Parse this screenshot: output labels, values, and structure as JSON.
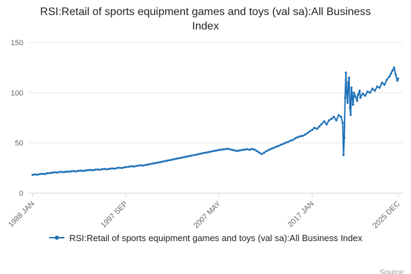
{
  "title": "RSI:Retail of sports equipment games and toys (val sa):All Business Index",
  "legend": {
    "label": "RSI:Retail of sports equipment games and toys (val sa):All Business Index"
  },
  "source_label": "Source:",
  "colors": {
    "line": "#1d70b8",
    "axis": "#ccd1d9",
    "gridline": "#e6e6e6",
    "tick_text": "#666666",
    "title_text": "#222222"
  },
  "chart_data": {
    "type": "line",
    "title": "RSI:Retail of sports equipment games and toys (val sa):All Business Index",
    "xlabel": "",
    "ylabel": "",
    "legend_position": "bottom",
    "grid": "horizontal-faint",
    "ylim": [
      0,
      150
    ],
    "xlim": [
      1987.6,
      2026.4
    ],
    "y_ticks": [
      0,
      50,
      100,
      150
    ],
    "x_ticks": [
      {
        "x": 1988.0,
        "label": "1988 JAN"
      },
      {
        "x": 1997.667,
        "label": "1997 SEP"
      },
      {
        "x": 2007.333,
        "label": "2007 MAY"
      },
      {
        "x": 2017.0,
        "label": "2017 JAN"
      },
      {
        "x": 2025.917,
        "label": "2025 DEC"
      }
    ],
    "series": [
      {
        "name": "RSI:Retail of sports equipment games and toys (val sa):All Business Index",
        "points": [
          [
            1988,
            18.2
          ],
          [
            1988.25,
            18.6
          ],
          [
            1988.5,
            18.4
          ],
          [
            1988.75,
            19
          ],
          [
            1989,
            19.3
          ],
          [
            1989.25,
            19.1
          ],
          [
            1989.5,
            19.8
          ],
          [
            1989.75,
            20
          ],
          [
            1990,
            20.3
          ],
          [
            1990.25,
            20.8
          ],
          [
            1990.5,
            20.5
          ],
          [
            1990.75,
            21
          ],
          [
            1991,
            21.2
          ],
          [
            1991.25,
            20.9
          ],
          [
            1991.5,
            21.5
          ],
          [
            1991.75,
            21.3
          ],
          [
            1992,
            21.8
          ],
          [
            1992.25,
            22
          ],
          [
            1992.5,
            21.6
          ],
          [
            1992.75,
            22.2
          ],
          [
            1993,
            22.4
          ],
          [
            1993.25,
            22.1
          ],
          [
            1993.5,
            22.6
          ],
          [
            1993.75,
            22.9
          ],
          [
            1994,
            23.1
          ],
          [
            1994.25,
            22.8
          ],
          [
            1994.5,
            23.4
          ],
          [
            1994.75,
            23.6
          ],
          [
            1995,
            23.3
          ],
          [
            1995.25,
            23.9
          ],
          [
            1995.5,
            24.1
          ],
          [
            1995.75,
            23.8
          ],
          [
            1996,
            24.3
          ],
          [
            1996.25,
            24.7
          ],
          [
            1996.5,
            24.4
          ],
          [
            1996.75,
            25
          ],
          [
            1997,
            25.3
          ],
          [
            1997.25,
            25
          ],
          [
            1997.5,
            25.7
          ],
          [
            1997.75,
            26
          ],
          [
            1998,
            26.3
          ],
          [
            1998.25,
            26.8
          ],
          [
            1998.5,
            26.5
          ],
          [
            1998.75,
            27.1
          ],
          [
            1999,
            27.4
          ],
          [
            1999.25,
            27.8
          ],
          [
            1999.5,
            27.5
          ],
          [
            1999.75,
            28.2
          ],
          [
            2000,
            28.6
          ],
          [
            2000.25,
            29.1
          ],
          [
            2000.5,
            29.6
          ],
          [
            2000.75,
            30
          ],
          [
            2001,
            30.4
          ],
          [
            2001.25,
            30.9
          ],
          [
            2001.5,
            31.4
          ],
          [
            2001.75,
            32
          ],
          [
            2002,
            32.4
          ],
          [
            2002.25,
            32.9
          ],
          [
            2002.5,
            33.4
          ],
          [
            2002.75,
            34
          ],
          [
            2003,
            34.4
          ],
          [
            2003.25,
            34.9
          ],
          [
            2003.5,
            35.4
          ],
          [
            2003.75,
            36
          ],
          [
            2004,
            36.4
          ],
          [
            2004.25,
            36.9
          ],
          [
            2004.5,
            37.4
          ],
          [
            2004.75,
            38
          ],
          [
            2005,
            38.3
          ],
          [
            2005.25,
            38.9
          ],
          [
            2005.5,
            39.4
          ],
          [
            2005.75,
            40
          ],
          [
            2006,
            40.3
          ],
          [
            2006.25,
            40.9
          ],
          [
            2006.5,
            41.4
          ],
          [
            2006.75,
            42
          ],
          [
            2007,
            42.3
          ],
          [
            2007.25,
            42.9
          ],
          [
            2007.5,
            43.2
          ],
          [
            2007.75,
            43.6
          ],
          [
            2008,
            43.9
          ],
          [
            2008.25,
            44.2
          ],
          [
            2008.5,
            43.6
          ],
          [
            2008.75,
            43
          ],
          [
            2009,
            42.4
          ],
          [
            2009.25,
            42
          ],
          [
            2009.5,
            42.6
          ],
          [
            2009.75,
            43
          ],
          [
            2010,
            43.3
          ],
          [
            2010.25,
            43.8
          ],
          [
            2010.5,
            43.2
          ],
          [
            2010.75,
            44
          ],
          [
            2011,
            43.4
          ],
          [
            2011.25,
            42
          ],
          [
            2011.5,
            40.5
          ],
          [
            2011.75,
            39
          ],
          [
            2012,
            40.2
          ],
          [
            2012.25,
            41.8
          ],
          [
            2012.5,
            43
          ],
          [
            2012.75,
            44.2
          ],
          [
            2013,
            45
          ],
          [
            2013.25,
            46.2
          ],
          [
            2013.5,
            47
          ],
          [
            2013.75,
            48.2
          ],
          [
            2014,
            49
          ],
          [
            2014.25,
            50.2
          ],
          [
            2014.5,
            51
          ],
          [
            2014.75,
            52.2
          ],
          [
            2015,
            53
          ],
          [
            2015.25,
            54.6
          ],
          [
            2015.5,
            55.8
          ],
          [
            2015.75,
            56.6
          ],
          [
            2016,
            57
          ],
          [
            2016.25,
            58.2
          ],
          [
            2016.5,
            59.8
          ],
          [
            2016.75,
            61.5
          ],
          [
            2017,
            63
          ],
          [
            2017.25,
            65
          ],
          [
            2017.5,
            64
          ],
          [
            2017.75,
            66.5
          ],
          [
            2018,
            69
          ],
          [
            2018.25,
            71.5
          ],
          [
            2018.5,
            68.5
          ],
          [
            2018.75,
            72.5
          ],
          [
            2019,
            74
          ],
          [
            2019.25,
            76
          ],
          [
            2019.5,
            72.5
          ],
          [
            2019.75,
            77.5
          ],
          [
            2020,
            76
          ],
          [
            2020.17,
            70
          ],
          [
            2020.25,
            38
          ],
          [
            2020.33,
            55
          ],
          [
            2020.42,
            95
          ],
          [
            2020.5,
            120
          ],
          [
            2020.58,
            100
          ],
          [
            2020.67,
            90
          ],
          [
            2020.75,
            110
          ],
          [
            2020.83,
            115
          ],
          [
            2020.92,
            85
          ],
          [
            2021,
            78
          ],
          [
            2021.08,
            105
          ],
          [
            2021.17,
            95
          ],
          [
            2021.25,
            88
          ],
          [
            2021.33,
            100
          ],
          [
            2021.5,
            96
          ],
          [
            2021.67,
            92
          ],
          [
            2021.75,
            98
          ],
          [
            2021.92,
            102
          ],
          [
            2022,
            95
          ],
          [
            2022.25,
            99
          ],
          [
            2022.5,
            97
          ],
          [
            2022.75,
            101
          ],
          [
            2023,
            100
          ],
          [
            2023.25,
            104
          ],
          [
            2023.5,
            102
          ],
          [
            2023.75,
            106
          ],
          [
            2024,
            105
          ],
          [
            2024.25,
            110
          ],
          [
            2024.5,
            108
          ],
          [
            2024.75,
            113
          ],
          [
            2025,
            116
          ],
          [
            2025.17,
            119
          ],
          [
            2025.33,
            122
          ],
          [
            2025.5,
            125
          ],
          [
            2025.67,
            118
          ],
          [
            2025.83,
            112
          ],
          [
            2025.92,
            114
          ]
        ]
      }
    ]
  }
}
